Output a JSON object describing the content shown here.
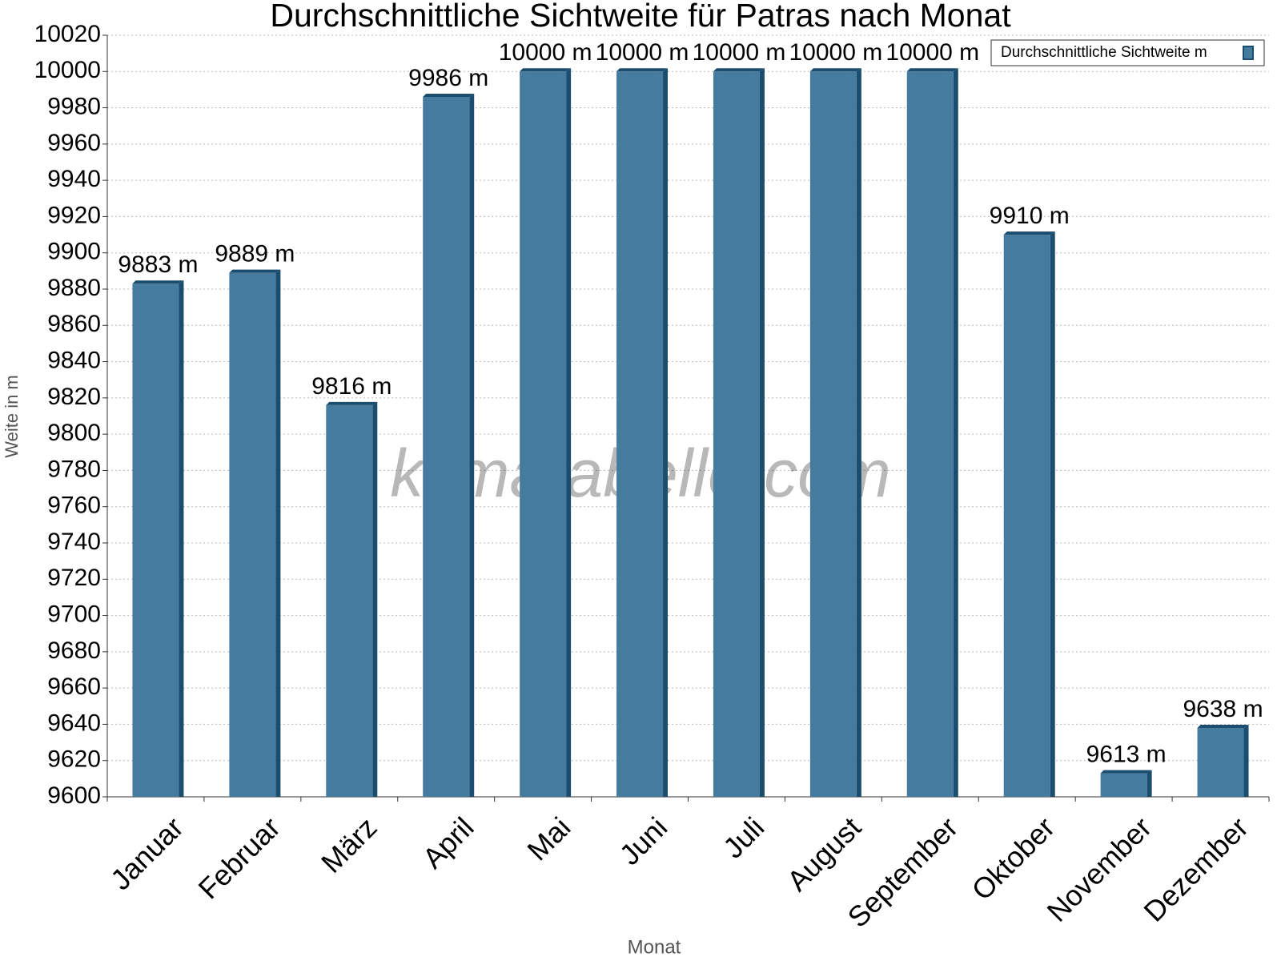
{
  "chart_data": {
    "type": "bar",
    "title": "Durchschnittliche Sichtweite für Patras nach Monat",
    "x_label": "Monat",
    "y_label": "Weite in m",
    "watermark": "klimatabelle.com",
    "categories": [
      "Januar",
      "Februar",
      "März",
      "April",
      "Mai",
      "Juni",
      "Juli",
      "August",
      "September",
      "Oktober",
      "November",
      "Dezember"
    ],
    "series": [
      {
        "name": "Durchschnittliche Sichtweite m",
        "color": "#467ba0",
        "values": [
          9883,
          9889,
          9816,
          9986,
          10000,
          10000,
          10000,
          10000,
          10000,
          9910,
          9613,
          9638
        ],
        "value_labels": [
          "9883 m",
          "9889 m",
          "9816 m",
          "9986 m",
          "10000 m",
          "10000 m",
          "10000 m",
          "10000 m",
          "10000 m",
          "9910 m",
          "9613 m",
          "9638 m"
        ]
      }
    ],
    "ylim": [
      9600,
      10020
    ],
    "yticks": [
      9600,
      9620,
      9640,
      9660,
      9680,
      9700,
      9720,
      9740,
      9760,
      9780,
      9800,
      9820,
      9840,
      9860,
      9880,
      9900,
      9920,
      9940,
      9960,
      9980,
      10000,
      10020
    ],
    "grid": true,
    "legend": "upper right"
  }
}
